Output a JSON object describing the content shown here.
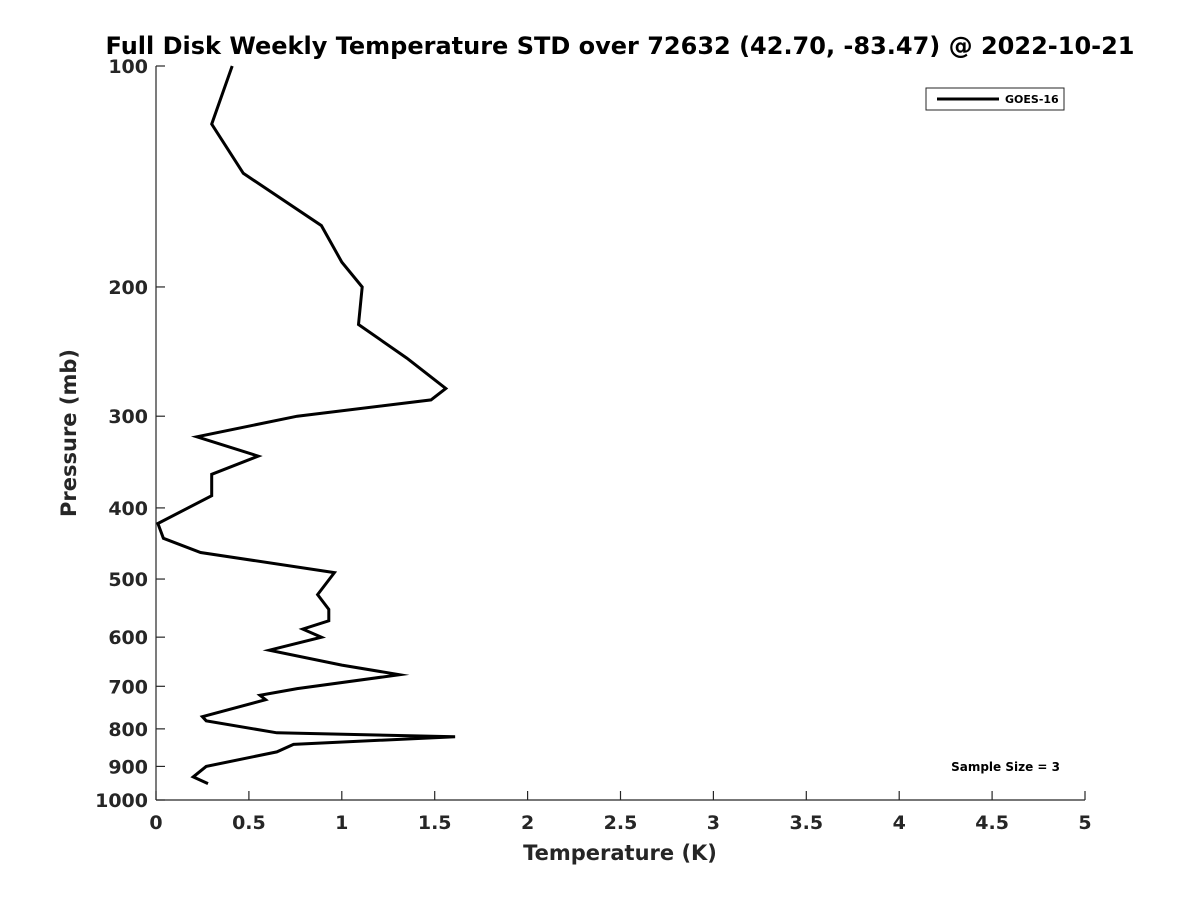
{
  "chart_data": {
    "type": "line",
    "title": "Full Disk Weekly Temperature STD over 72632 (42.70, -83.47) @ 2022-10-21",
    "xlabel": "Temperature (K)",
    "ylabel": "Pressure (mb)",
    "xlim": [
      0,
      5
    ],
    "ylim": [
      100,
      1000
    ],
    "y_scale": "log",
    "y_reversed": true,
    "x_ticks": [
      "0",
      "0.5",
      "1",
      "1.5",
      "2",
      "2.5",
      "3",
      "3.5",
      "4",
      "4.5",
      "5"
    ],
    "y_ticks": [
      "100",
      "200",
      "300",
      "400",
      "500",
      "600",
      "700",
      "800",
      "900",
      "1000"
    ],
    "grid": false,
    "legend_position": "top-right",
    "series": [
      {
        "name": "GOES-16",
        "color": "#000000",
        "points": [
          {
            "x": 0.41,
            "p": 100
          },
          {
            "x": 0.3,
            "p": 120
          },
          {
            "x": 0.47,
            "p": 140
          },
          {
            "x": 0.89,
            "p": 165
          },
          {
            "x": 1.0,
            "p": 185
          },
          {
            "x": 1.11,
            "p": 200
          },
          {
            "x": 1.09,
            "p": 225
          },
          {
            "x": 1.35,
            "p": 250
          },
          {
            "x": 1.56,
            "p": 275
          },
          {
            "x": 1.48,
            "p": 285
          },
          {
            "x": 0.76,
            "p": 300
          },
          {
            "x": 0.22,
            "p": 320
          },
          {
            "x": 0.55,
            "p": 340
          },
          {
            "x": 0.3,
            "p": 360
          },
          {
            "x": 0.3,
            "p": 385
          },
          {
            "x": 0.01,
            "p": 420
          },
          {
            "x": 0.04,
            "p": 440
          },
          {
            "x": 0.24,
            "p": 460
          },
          {
            "x": 0.96,
            "p": 490
          },
          {
            "x": 0.87,
            "p": 525
          },
          {
            "x": 0.93,
            "p": 550
          },
          {
            "x": 0.93,
            "p": 570
          },
          {
            "x": 0.79,
            "p": 585
          },
          {
            "x": 0.89,
            "p": 600
          },
          {
            "x": 0.61,
            "p": 625
          },
          {
            "x": 1.0,
            "p": 655
          },
          {
            "x": 1.31,
            "p": 675
          },
          {
            "x": 0.76,
            "p": 705
          },
          {
            "x": 0.56,
            "p": 720
          },
          {
            "x": 0.59,
            "p": 730
          },
          {
            "x": 0.25,
            "p": 770
          },
          {
            "x": 0.27,
            "p": 780
          },
          {
            "x": 0.65,
            "p": 810
          },
          {
            "x": 1.61,
            "p": 820
          },
          {
            "x": 0.74,
            "p": 840
          },
          {
            "x": 0.65,
            "p": 860
          },
          {
            "x": 0.27,
            "p": 900
          },
          {
            "x": 0.2,
            "p": 930
          },
          {
            "x": 0.28,
            "p": 950
          }
        ]
      }
    ],
    "annotation": "Sample Size = 3"
  }
}
